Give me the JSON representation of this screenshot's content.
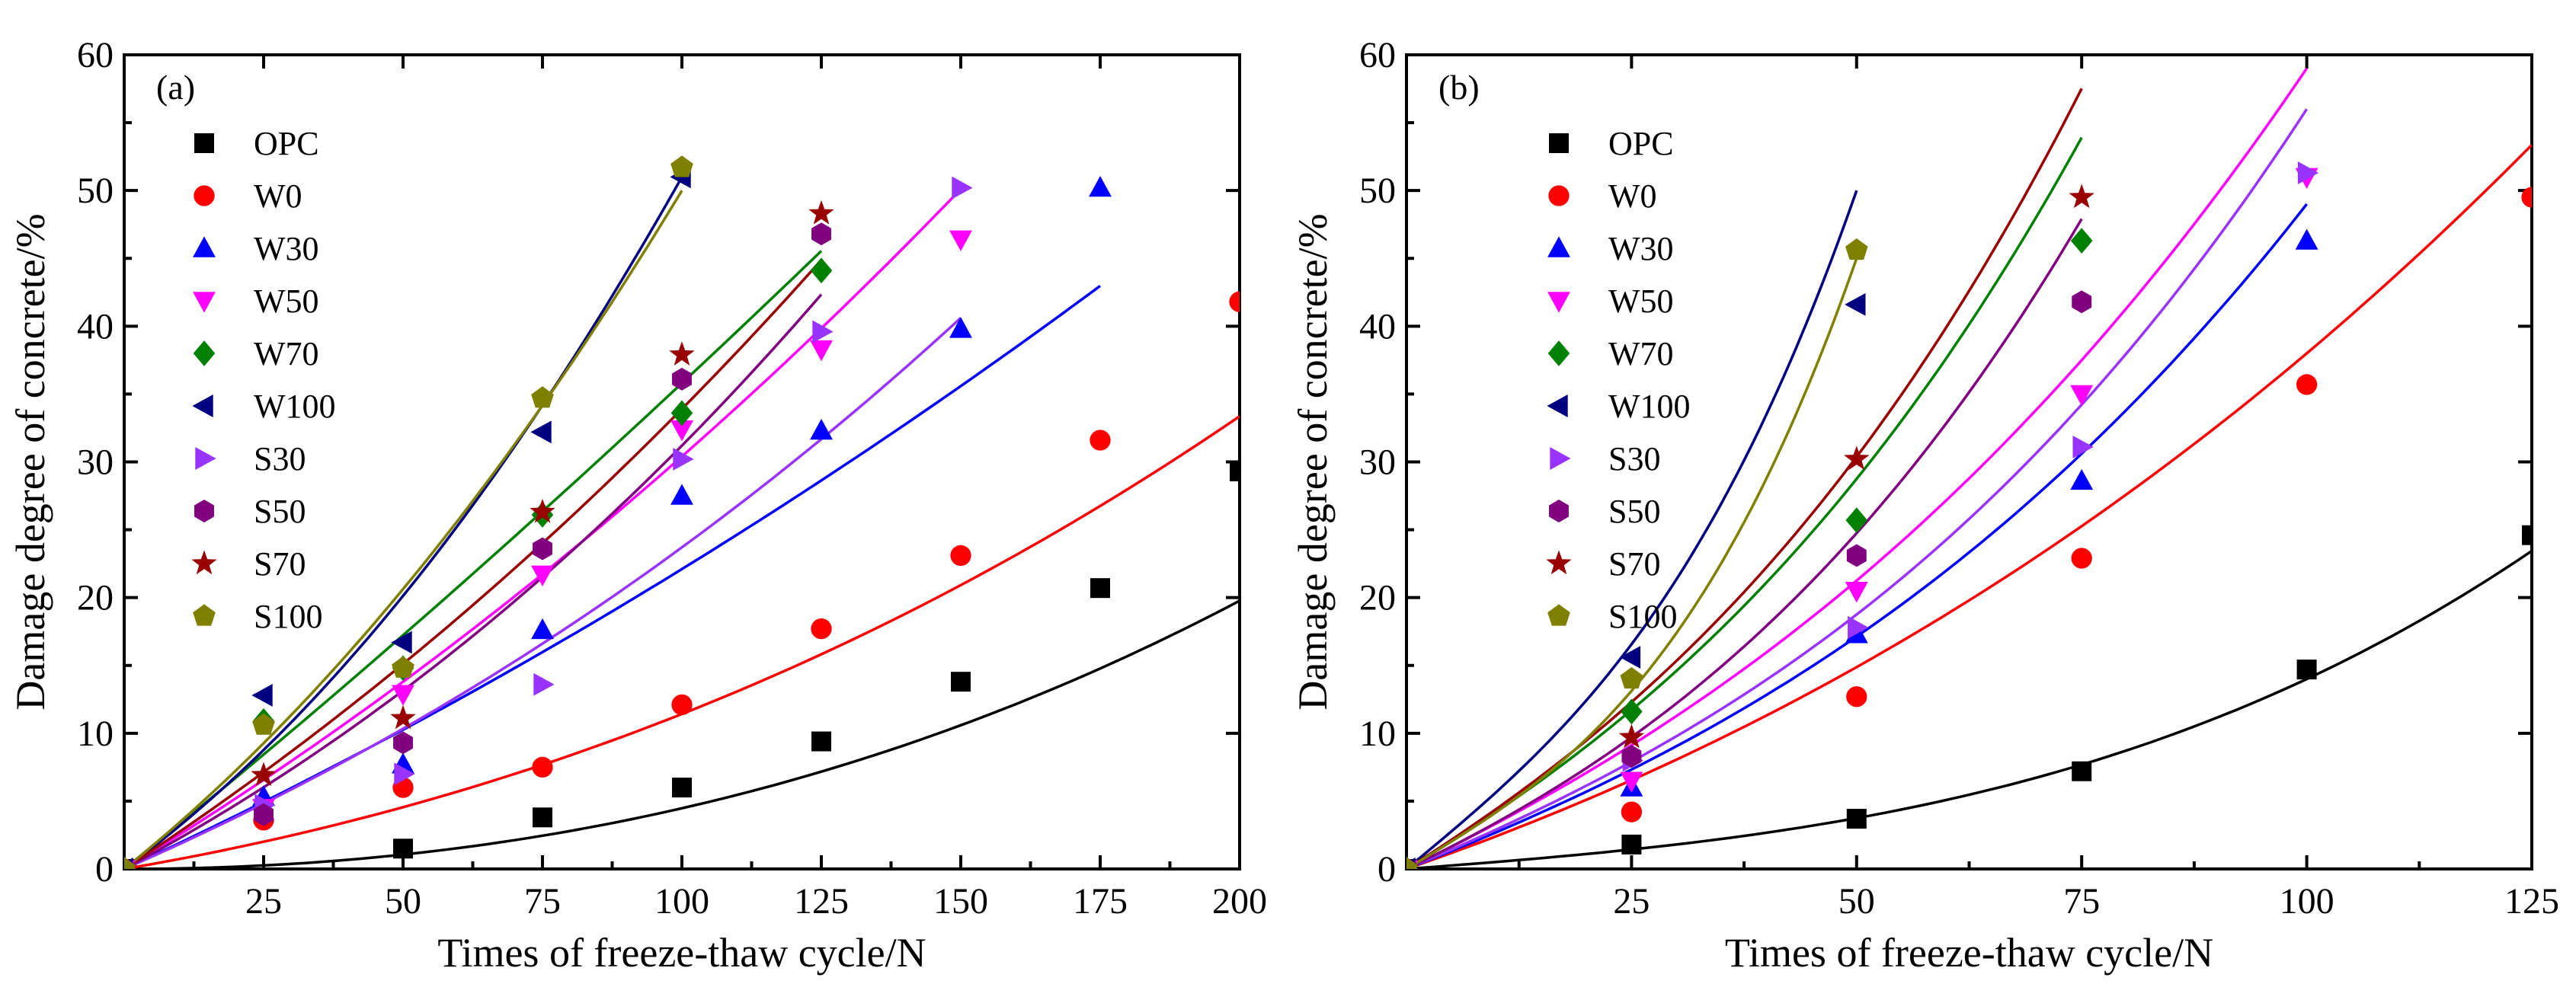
{
  "chart_data": [
    {
      "type": "scatter",
      "panel_label": "(a)",
      "xlabel": "Times of freeze-thaw cycle/N",
      "ylabel": "Damage degree of concrete/%",
      "xlim": [
        0,
        200
      ],
      "ylim": [
        0,
        60
      ],
      "xticks": [
        25,
        50,
        75,
        100,
        125,
        150,
        175,
        200
      ],
      "yticks": [
        0,
        10,
        20,
        30,
        40,
        50,
        60
      ],
      "legend_position": "top-left",
      "series": [
        {
          "name": "OPC",
          "color": "#000000",
          "marker": "square",
          "x": [
            0,
            50,
            75,
            100,
            125,
            150,
            175,
            200
          ],
          "y": [
            0,
            1.5,
            3.8,
            6.0,
            9.4,
            13.8,
            20.7,
            29.3
          ],
          "fit": [
            0.0,
            3.3e-05,
            0.0004,
            4.7e-07
          ]
        },
        {
          "name": "W0",
          "color": "#ff0000",
          "marker": "circle",
          "x": [
            0,
            25,
            50,
            75,
            100,
            125,
            150,
            175,
            200
          ],
          "y": [
            0,
            3.6,
            6.0,
            7.5,
            12.1,
            17.7,
            23.1,
            31.6,
            41.8
          ],
          "fit": [
            0.0,
            0.07,
            0.0004,
            4.2e-07
          ]
        },
        {
          "name": "W30",
          "color": "#0000ff",
          "marker": "triangle-up",
          "x": [
            0,
            25,
            50,
            75,
            100,
            125,
            150,
            175
          ],
          "y": [
            0,
            5.3,
            7.7,
            17.6,
            27.5,
            32.3,
            39.8,
            50.2
          ],
          "fit": [
            0.0,
            0.19,
            0.0003,
            1e-07
          ]
        },
        {
          "name": "W50",
          "color": "#ff00ff",
          "marker": "triangle-down",
          "x": [
            0,
            25,
            50,
            75,
            100,
            125,
            150
          ],
          "y": [
            0,
            4.5,
            12.9,
            21.7,
            32.4,
            38.3,
            46.4
          ],
          "fit": [
            0.0,
            0.25,
            0.0005,
            4e-07
          ]
        },
        {
          "name": "W70",
          "color": "#008000",
          "marker": "diamond",
          "x": [
            0,
            25,
            50,
            75,
            100,
            125
          ],
          "y": [
            0,
            10.9,
            14.8,
            26.1,
            33.6,
            44.1
          ],
          "fit": [
            0.0,
            0.33,
            0.0003,
            -2e-07
          ]
        },
        {
          "name": "W100",
          "color": "#000080",
          "marker": "triangle-left",
          "x": [
            0,
            25,
            50,
            75,
            100
          ],
          "y": [
            0,
            12.8,
            16.7,
            32.2,
            51.0
          ],
          "fit": [
            0.0,
            0.3,
            0.002,
            1e-06
          ]
        },
        {
          "name": "S30",
          "color": "#9933ff",
          "marker": "triangle-right",
          "x": [
            0,
            25,
            50,
            75,
            100,
            125,
            150
          ],
          "y": [
            0,
            4.7,
            7.0,
            13.6,
            30.2,
            39.6,
            50.2
          ],
          "fit": [
            0.0,
            0.18,
            0.0005,
            7e-07
          ]
        },
        {
          "name": "S50",
          "color": "#800080",
          "marker": "hexagon",
          "x": [
            0,
            25,
            50,
            75,
            100,
            125
          ],
          "y": [
            0,
            4.0,
            9.3,
            23.6,
            36.1,
            46.8
          ],
          "fit": [
            0.0,
            0.22,
            0.0008,
            1.2e-06
          ]
        },
        {
          "name": "S70",
          "color": "#990000",
          "marker": "star",
          "x": [
            0,
            25,
            50,
            75,
            100,
            125
          ],
          "y": [
            0,
            6.9,
            11.1,
            26.3,
            37.9,
            48.3
          ],
          "fit": [
            0.0,
            0.27,
            0.0006,
            9e-07
          ]
        },
        {
          "name": "S100",
          "color": "#808000",
          "marker": "pentagon",
          "x": [
            0,
            25,
            50,
            75,
            100
          ],
          "y": [
            0,
            10.6,
            14.8,
            34.7,
            51.7
          ],
          "fit": [
            0.0,
            0.33,
            0.0016,
            1e-06
          ]
        }
      ]
    },
    {
      "type": "scatter",
      "panel_label": "(b)",
      "xlabel": "Times of freeze-thaw cycle/N",
      "ylabel": "Damage degree of concrete/%",
      "xlim": [
        0,
        125
      ],
      "ylim": [
        0,
        60
      ],
      "xticks": [
        25,
        50,
        75,
        100,
        125
      ],
      "yticks": [
        0,
        10,
        20,
        30,
        40,
        50,
        60
      ],
      "legend_position": "top-left",
      "series": [
        {
          "name": "OPC",
          "color": "#000000",
          "marker": "square",
          "x": [
            0,
            25,
            50,
            75,
            100,
            125
          ],
          "y": [
            0,
            1.8,
            3.7,
            7.2,
            14.7,
            24.6
          ],
          "fit": [
            0.0,
            0.05,
            0.0001,
            8e-06
          ]
        },
        {
          "name": "W0",
          "color": "#ff0000",
          "marker": "circle",
          "x": [
            0,
            25,
            50,
            75,
            100,
            125
          ],
          "y": [
            0,
            4.2,
            12.7,
            22.9,
            35.7,
            49.5
          ],
          "fit": [
            0.0,
            0.23,
            0.0012,
            3e-06
          ]
        },
        {
          "name": "W30",
          "color": "#0000ff",
          "marker": "triangle-up",
          "x": [
            0,
            25,
            50,
            75,
            100
          ],
          "y": [
            0,
            6.0,
            17.3,
            28.6,
            46.3
          ],
          "fit": [
            0.0,
            0.26,
            0.001,
            1.3e-05
          ]
        },
        {
          "name": "W50",
          "color": "#ff00ff",
          "marker": "triangle-down",
          "x": [
            0,
            25,
            50,
            75,
            100
          ],
          "y": [
            0,
            6.5,
            20.5,
            35.0,
            51.0
          ],
          "fit": [
            0.0,
            0.32,
            0.0015,
            1.2e-05
          ]
        },
        {
          "name": "W70",
          "color": "#008000",
          "marker": "diamond",
          "x": [
            0,
            25,
            50,
            75
          ],
          "y": [
            0,
            11.6,
            25.7,
            46.3
          ],
          "fit": [
            0.0,
            0.4,
            0.002,
            3e-05
          ]
        },
        {
          "name": "W100",
          "color": "#000080",
          "marker": "triangle-left",
          "x": [
            0,
            25,
            50
          ],
          "y": [
            0,
            15.6,
            41.6
          ],
          "fit": [
            0.0,
            0.55,
            0.0,
            0.00018
          ]
        },
        {
          "name": "S30",
          "color": "#9933ff",
          "marker": "triangle-right",
          "x": [
            0,
            25,
            50,
            75,
            100
          ],
          "y": [
            0,
            8.0,
            17.8,
            31.1,
            51.3
          ],
          "fit": [
            0.0,
            0.28,
            0.001,
            1.8e-05
          ]
        },
        {
          "name": "S50",
          "color": "#800080",
          "marker": "hexagon",
          "x": [
            0,
            25,
            50,
            75
          ],
          "y": [
            0,
            8.3,
            23.1,
            41.8
          ],
          "fit": [
            0.0,
            0.32,
            0.002,
            3e-05
          ]
        },
        {
          "name": "S70",
          "color": "#990000",
          "marker": "star",
          "x": [
            0,
            25,
            50,
            75
          ],
          "y": [
            0,
            9.7,
            30.2,
            49.5
          ],
          "fit": [
            0.0,
            0.42,
            0.002,
            3.5e-05
          ]
        },
        {
          "name": "S100",
          "color": "#808000",
          "marker": "pentagon",
          "x": [
            0,
            25,
            50
          ],
          "y": [
            0,
            14.0,
            45.6
          ],
          "fit": [
            0.0,
            0.4,
            0.0,
            0.0002
          ]
        }
      ]
    }
  ]
}
